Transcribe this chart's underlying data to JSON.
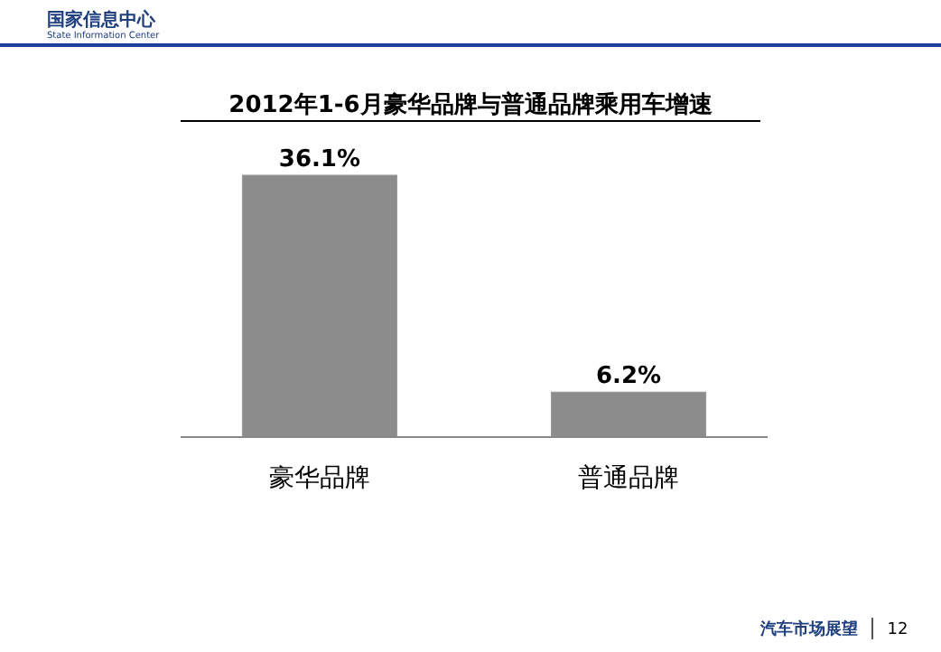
{
  "chart_data": {
    "type": "bar",
    "title": "2012年1-6月豪华品牌与普通品牌乘用车增速",
    "categories": [
      "豪华品牌",
      "普通品牌"
    ],
    "values": [
      36.1,
      6.2
    ],
    "value_labels": [
      "36.1%",
      "6.2%"
    ],
    "color": "#8c8c8c",
    "tick_labels": "x",
    "annotations": [
      "国家信息中心",
      "State Information Center",
      "汽车市场展望",
      "12"
    ]
  }
}
